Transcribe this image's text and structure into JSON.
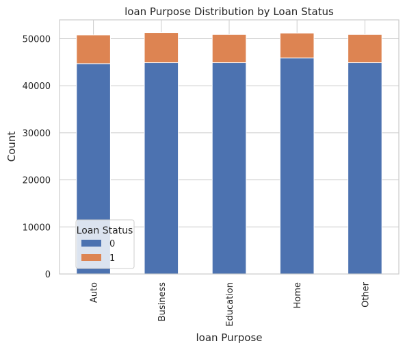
{
  "chart_data": {
    "type": "bar",
    "stacked": true,
    "title": "loan Purpose Distribution by Loan Status",
    "xlabel": "loan Purpose",
    "ylabel": "Count",
    "categories": [
      "Auto",
      "Business",
      "Education",
      "Home",
      "Other"
    ],
    "series": [
      {
        "name": "0",
        "values": [
          44700,
          44900,
          44900,
          45900,
          44900
        ],
        "color": "#4c72b0"
      },
      {
        "name": "1",
        "values": [
          6100,
          6400,
          6000,
          5300,
          6000
        ],
        "color": "#dd8452"
      }
    ],
    "ylim": [
      0,
      54000
    ],
    "yticks": [
      0,
      10000,
      20000,
      30000,
      40000,
      50000
    ],
    "grid": true,
    "legend": {
      "title": "Loan Status",
      "position": "lower-left"
    }
  }
}
